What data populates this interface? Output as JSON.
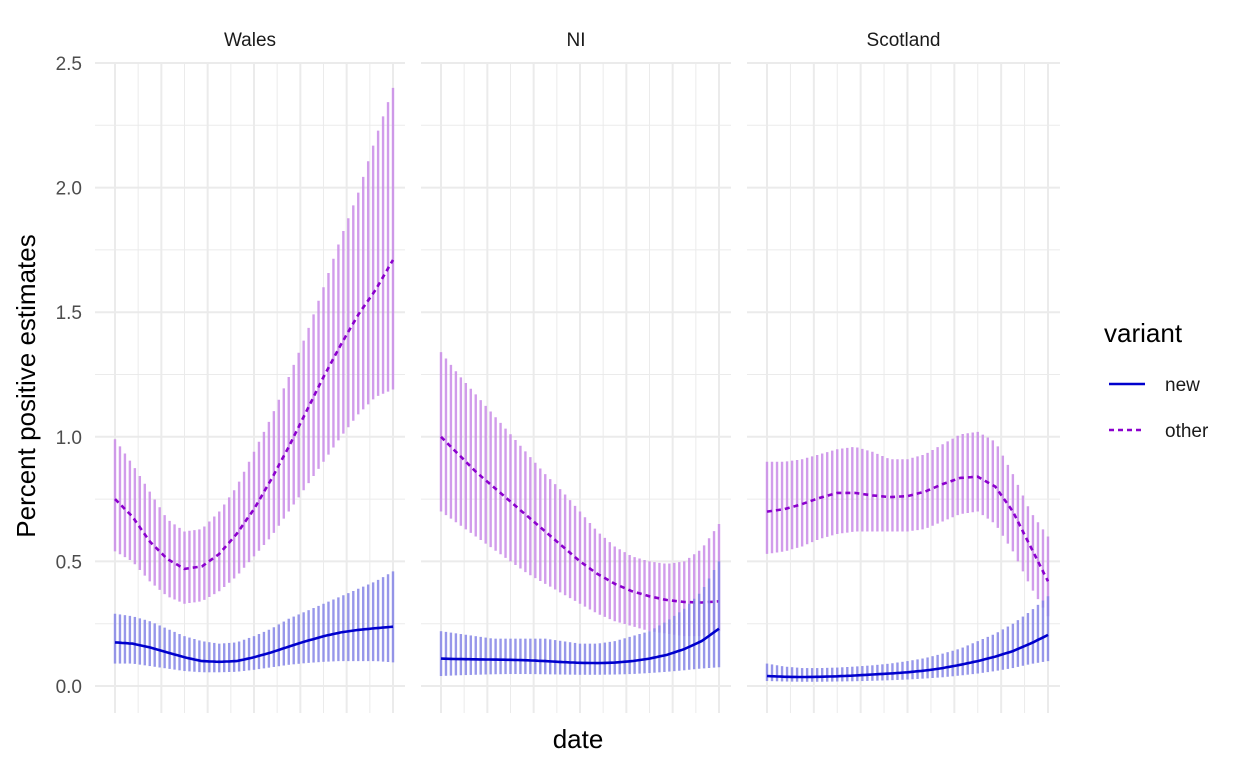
{
  "chart_data": {
    "type": "line",
    "xlabel": "date",
    "ylabel": "Percent positive estimates",
    "ylim": [
      0,
      2.5
    ],
    "yticks": [
      "0.0",
      "0.5",
      "1.0",
      "1.5",
      "2.0",
      "2.5"
    ],
    "grid": true,
    "legend": {
      "title": "variant",
      "position": "right",
      "entries": [
        {
          "label": "new",
          "linetype": "solid",
          "color": "#0000cd"
        },
        {
          "label": "other",
          "linetype": "dashed",
          "color": "#8b00cd"
        }
      ]
    },
    "colors": {
      "new_band": "#8585e6",
      "other_band": "#c98be8"
    },
    "x_note": "date axis has no tick labels; x given as week index 0-40",
    "panels": [
      {
        "name": "Wales",
        "x": [
          0,
          2.5,
          5,
          7.5,
          10,
          12.5,
          15,
          17.5,
          20,
          22.5,
          25,
          27.5,
          30,
          32.5,
          35,
          37.5,
          40
        ],
        "series": [
          {
            "name": "other",
            "mean": [
              0.75,
              0.68,
              0.58,
              0.51,
              0.47,
              0.48,
              0.53,
              0.61,
              0.71,
              0.83,
              0.96,
              1.1,
              1.24,
              1.37,
              1.49,
              1.59,
              1.71
            ],
            "lower": [
              0.54,
              0.5,
              0.42,
              0.36,
              0.33,
              0.34,
              0.38,
              0.44,
              0.52,
              0.6,
              0.7,
              0.8,
              0.9,
              1.0,
              1.09,
              1.16,
              1.19
            ],
            "upper": [
              0.99,
              0.89,
              0.78,
              0.67,
              0.62,
              0.63,
              0.7,
              0.8,
              0.94,
              1.08,
              1.24,
              1.41,
              1.6,
              1.8,
              1.98,
              2.2,
              2.4
            ]
          },
          {
            "name": "new",
            "mean": [
              0.175,
              0.17,
              0.155,
              0.135,
              0.115,
              0.1,
              0.097,
              0.1,
              0.115,
              0.135,
              0.158,
              0.18,
              0.2,
              0.215,
              0.225,
              0.232,
              0.238
            ],
            "lower": [
              0.09,
              0.09,
              0.08,
              0.07,
              0.06,
              0.055,
              0.055,
              0.057,
              0.065,
              0.075,
              0.085,
              0.092,
              0.097,
              0.1,
              0.1,
              0.1,
              0.095
            ],
            "upper": [
              0.29,
              0.28,
              0.26,
              0.23,
              0.2,
              0.18,
              0.17,
              0.175,
              0.2,
              0.23,
              0.27,
              0.3,
              0.33,
              0.36,
              0.39,
              0.42,
              0.46
            ]
          }
        ]
      },
      {
        "name": "NI",
        "x": [
          0,
          2.5,
          5,
          7.5,
          10,
          12.5,
          15,
          17.5,
          20,
          22.5,
          25,
          27.5,
          30,
          32.5,
          35,
          37.5,
          40
        ],
        "series": [
          {
            "name": "other",
            "mean": [
              1.0,
              0.93,
              0.86,
              0.8,
              0.74,
              0.68,
              0.62,
              0.56,
              0.5,
              0.45,
              0.41,
              0.38,
              0.36,
              0.345,
              0.337,
              0.335,
              0.34
            ],
            "lower": [
              0.7,
              0.65,
              0.6,
              0.55,
              0.5,
              0.45,
              0.41,
              0.37,
              0.33,
              0.29,
              0.26,
              0.24,
              0.22,
              0.21,
              0.2,
              0.2,
              0.22
            ],
            "upper": [
              1.34,
              1.25,
              1.17,
              1.09,
              1.01,
              0.93,
              0.85,
              0.78,
              0.7,
              0.62,
              0.56,
              0.52,
              0.5,
              0.49,
              0.5,
              0.55,
              0.65
            ]
          },
          {
            "name": "new",
            "mean": [
              0.11,
              0.108,
              0.107,
              0.106,
              0.105,
              0.103,
              0.1,
              0.096,
              0.093,
              0.092,
              0.094,
              0.1,
              0.11,
              0.125,
              0.148,
              0.18,
              0.23
            ],
            "lower": [
              0.04,
              0.043,
              0.045,
              0.047,
              0.048,
              0.048,
              0.047,
              0.046,
              0.045,
              0.045,
              0.046,
              0.048,
              0.052,
              0.057,
              0.063,
              0.07,
              0.075
            ],
            "upper": [
              0.22,
              0.21,
              0.2,
              0.19,
              0.19,
              0.19,
              0.19,
              0.18,
              0.17,
              0.17,
              0.18,
              0.2,
              0.22,
              0.26,
              0.31,
              0.38,
              0.5
            ]
          }
        ]
      },
      {
        "name": "Scotland",
        "x": [
          0,
          2.5,
          5,
          7.5,
          10,
          12.5,
          15,
          17.5,
          20,
          22.5,
          25,
          27.5,
          30,
          32.5,
          35,
          37.5,
          40
        ],
        "series": [
          {
            "name": "other",
            "mean": [
              0.7,
              0.71,
              0.73,
              0.755,
              0.775,
              0.775,
              0.765,
              0.758,
              0.762,
              0.78,
              0.81,
              0.835,
              0.84,
              0.8,
              0.7,
              0.56,
              0.42
            ],
            "lower": [
              0.53,
              0.54,
              0.56,
              0.59,
              0.61,
              0.62,
              0.62,
              0.62,
              0.62,
              0.63,
              0.66,
              0.69,
              0.7,
              0.65,
              0.54,
              0.4,
              0.28
            ],
            "upper": [
              0.9,
              0.9,
              0.91,
              0.93,
              0.95,
              0.96,
              0.94,
              0.91,
              0.91,
              0.93,
              0.97,
              1.01,
              1.02,
              0.98,
              0.85,
              0.7,
              0.6
            ]
          },
          {
            "name": "new",
            "mean": [
              0.04,
              0.037,
              0.036,
              0.037,
              0.039,
              0.042,
              0.046,
              0.05,
              0.055,
              0.062,
              0.072,
              0.085,
              0.1,
              0.118,
              0.14,
              0.17,
              0.205
            ],
            "lower": [
              0.02,
              0.018,
              0.017,
              0.017,
              0.018,
              0.019,
              0.021,
              0.023,
              0.026,
              0.03,
              0.035,
              0.042,
              0.05,
              0.06,
              0.072,
              0.088,
              0.1
            ],
            "upper": [
              0.09,
              0.078,
              0.072,
              0.072,
              0.074,
              0.078,
              0.083,
              0.09,
              0.1,
              0.112,
              0.13,
              0.15,
              0.18,
              0.21,
              0.25,
              0.3,
              0.36
            ]
          }
        ]
      }
    ]
  }
}
